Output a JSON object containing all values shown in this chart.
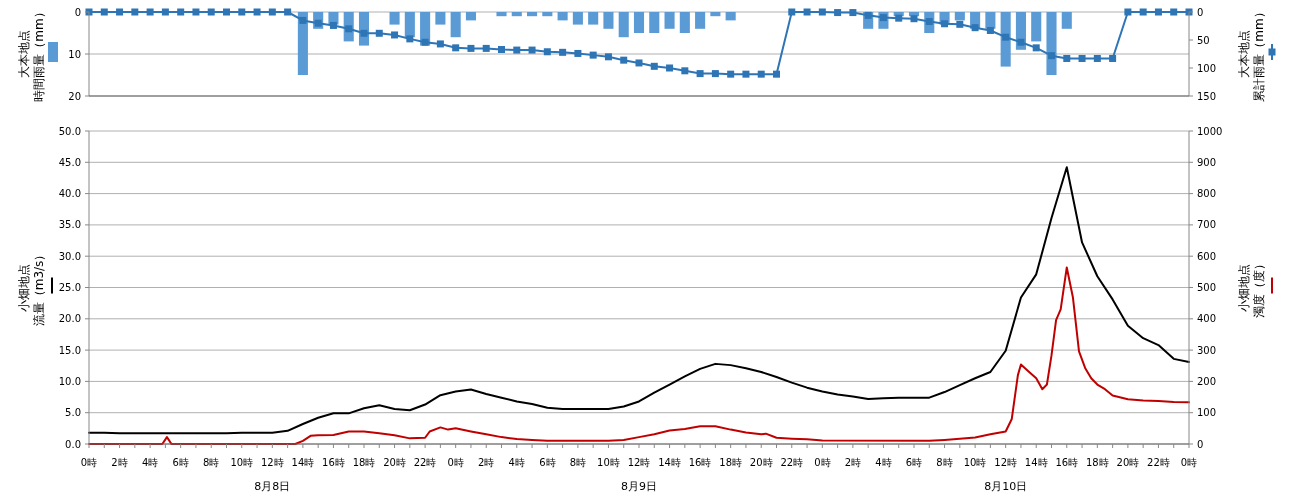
{
  "chart_data": [
    {
      "type": "bar",
      "ylabel": "大本地点時間雨量（mm）",
      "y2label": "大本地点累計雨量（mm）",
      "x": [
        "--08-08T00:00",
        "--08-08T01:00",
        "--08-08T02:00",
        "--08-08T03:00",
        "--08-08T04:00",
        "--08-08T05:00",
        "--08-08T06:00",
        "--08-08T07:00",
        "--08-08T08:00",
        "--08-08T09:00",
        "--08-08T10:00",
        "--08-08T11:00",
        "--08-08T12:00",
        "--08-08T13:00",
        "--08-08T14:00",
        "--08-08T15:00",
        "--08-08T16:00",
        "--08-08T17:00",
        "--08-08T18:00",
        "--08-08T19:00",
        "--08-08T20:00",
        "--08-08T21:00",
        "--08-08T22:00",
        "--08-08T23:00",
        "--08-09T00:00",
        "--08-09T01:00",
        "--08-09T02:00",
        "--08-09T03:00",
        "--08-09T04:00",
        "--08-09T05:00",
        "--08-09T06:00",
        "--08-09T07:00",
        "--08-09T08:00",
        "--08-09T09:00",
        "--08-09T10:00",
        "--08-09T11:00",
        "--08-09T12:00",
        "--08-09T13:00",
        "--08-09T14:00",
        "--08-09T15:00",
        "--08-09T16:00",
        "--08-09T17:00",
        "--08-09T18:00",
        "--08-09T19:00",
        "--08-09T20:00",
        "--08-09T21:00",
        "--08-09T22:00",
        "--08-09T23:00",
        "--08-10T00:00",
        "--08-10T01:00",
        "--08-10T02:00",
        "--08-10T03:00",
        "--08-10T04:00",
        "--08-10T05:00",
        "--08-10T06:00",
        "--08-10T07:00",
        "--08-10T08:00",
        "--08-10T09:00",
        "--08-10T10:00",
        "--08-10T11:00",
        "--08-10T12:00",
        "--08-10T13:00",
        "--08-10T14:00",
        "--08-10T15:00",
        "--08-10T16:00",
        "--08-10T17:00",
        "--08-10T18:00",
        "--08-10T19:00",
        "--08-10T20:00",
        "--08-10T21:00",
        "--08-10T22:00",
        "--08-10T23:00",
        "--08-11T00:00"
      ],
      "xlim": [
        "--08-08T00:00",
        "--08-11T00:00"
      ],
      "ylim": [
        20,
        0
      ],
      "yticks": [
        0,
        10,
        20
      ],
      "y2lim": [
        150,
        0
      ],
      "y2ticks": [
        0,
        50,
        100,
        150
      ],
      "grid": "y",
      "tick_labels": "y",
      "series": [
        {
          "color": "#5b9bd5",
          "values": [
            0,
            0,
            0,
            0,
            0,
            0,
            0,
            0,
            0,
            0,
            0,
            0,
            0,
            0,
            15,
            4,
            3,
            7,
            8,
            0,
            3,
            6,
            8,
            3,
            6,
            2,
            0,
            1,
            1,
            1,
            1,
            2,
            3,
            3,
            4,
            6,
            5,
            5,
            4,
            5,
            4,
            1,
            2,
            0,
            0,
            0,
            0,
            0,
            0,
            0,
            0,
            4,
            4,
            1,
            1,
            5,
            3,
            2,
            4,
            4,
            13,
            9,
            7,
            15,
            4,
            0,
            0,
            0,
            0,
            0,
            0,
            0,
            0
          ]
        },
        {
          "type": "line",
          "axis": "y2",
          "color": "#2e75b6",
          "marker": "square",
          "values": [
            0,
            0,
            0,
            0,
            0,
            0,
            0,
            0,
            0,
            0,
            0,
            0,
            0,
            0,
            15,
            20,
            24,
            30,
            38,
            38,
            41,
            48,
            54,
            57,
            64,
            65,
            65,
            67,
            68,
            68,
            71,
            72,
            74,
            77,
            80,
            86,
            91,
            97,
            100,
            105,
            110,
            110,
            111,
            111,
            111,
            111,
            0,
            0,
            0,
            1,
            1,
            6,
            10,
            11,
            12,
            17,
            21,
            22,
            28,
            33,
            45,
            54,
            64,
            78,
            83,
            83,
            83,
            83,
            0,
            0,
            0,
            0,
            0
          ]
        }
      ]
    },
    {
      "type": "line",
      "ylabel": "小畑地点流量（m3/s）",
      "y2label": "小畑地点濁度（度）",
      "x": [
        "--08-08T00:00",
        "--08-08T01:00",
        "--08-08T02:00",
        "--08-08T03:00",
        "--08-08T04:00",
        "--08-08T05:00",
        "--08-08T06:00",
        "--08-08T07:00",
        "--08-08T08:00",
        "--08-08T09:00",
        "--08-08T10:00",
        "--08-08T11:00",
        "--08-08T12:00",
        "--08-08T13:00",
        "--08-08T14:00",
        "--08-08T15:00",
        "--08-08T16:00",
        "--08-08T17:00",
        "--08-08T18:00",
        "--08-08T19:00",
        "--08-08T20:00",
        "--08-08T21:00",
        "--08-08T22:00",
        "--08-08T23:00",
        "--08-09T00:00",
        "--08-09T01:00",
        "--08-09T02:00",
        "--08-09T03:00",
        "--08-09T04:00",
        "--08-09T05:00",
        "--08-09T06:00",
        "--08-09T07:00",
        "--08-09T08:00",
        "--08-09T09:00",
        "--08-09T10:00",
        "--08-09T11:00",
        "--08-09T12:00",
        "--08-09T13:00",
        "--08-09T14:00",
        "--08-09T15:00",
        "--08-09T16:00",
        "--08-09T17:00",
        "--08-09T18:00",
        "--08-09T19:00",
        "--08-09T20:00",
        "--08-09T21:00",
        "--08-09T22:00",
        "--08-09T23:00",
        "--08-10T00:00",
        "--08-10T01:00",
        "--08-10T02:00",
        "--08-10T03:00",
        "--08-10T04:00",
        "--08-10T05:00",
        "--08-10T06:00",
        "--08-10T07:00",
        "--08-10T08:00",
        "--08-10T09:00",
        "--08-10T10:00",
        "--08-10T11:00",
        "--08-10T12:00",
        "--08-10T13:00",
        "--08-10T14:00",
        "--08-10T15:00",
        "--08-10T16:00",
        "--08-10T17:00",
        "--08-10T18:00",
        "--08-10T19:00",
        "--08-10T20:00",
        "--08-10T21:00",
        "--08-10T22:00",
        "--08-10T23:00",
        "--08-11T00:00"
      ],
      "xlim": [
        "--08-08T00:00",
        "--08-11T00:00"
      ],
      "xticks": [
        {
          "value": "--08-08T00:00",
          "label": "0時"
        },
        {
          "value": "--08-08T01:00",
          "label": null
        },
        {
          "value": "--08-08T02:00",
          "label": "2時"
        },
        {
          "value": "--08-08T03:00",
          "label": null
        },
        {
          "value": "--08-08T04:00",
          "label": "4時"
        },
        {
          "value": "--08-08T05:00",
          "label": null
        },
        {
          "value": "--08-08T06:00",
          "label": "6時"
        },
        {
          "value": "--08-08T07:00",
          "label": null
        },
        {
          "value": "--08-08T08:00",
          "label": "8時"
        },
        {
          "value": "--08-08T09:00",
          "label": null
        },
        {
          "value": "--08-08T10:00",
          "label": "10時"
        },
        {
          "value": "--08-08T11:00",
          "label": null
        },
        {
          "value": "--08-08T12:00",
          "label": "12時"
        },
        {
          "value": "--08-08T13:00",
          "label": null
        },
        {
          "value": "--08-08T14:00",
          "label": "14時"
        },
        {
          "value": "--08-08T15:00",
          "label": null
        },
        {
          "value": "--08-08T16:00",
          "label": "16時"
        },
        {
          "value": "--08-08T17:00",
          "label": null
        },
        {
          "value": "--08-08T18:00",
          "label": "18時"
        },
        {
          "value": "--08-08T19:00",
          "label": null
        },
        {
          "value": "--08-08T20:00",
          "label": "20時"
        },
        {
          "value": "--08-08T21:00",
          "label": null
        },
        {
          "value": "--08-08T22:00",
          "label": "22時"
        },
        {
          "value": "--08-08T23:00",
          "label": null
        },
        {
          "value": "--08-09T00:00",
          "label": "0時"
        },
        {
          "value": "--08-09T01:00",
          "label": null
        },
        {
          "value": "--08-09T02:00",
          "label": "2時"
        },
        {
          "value": "--08-09T03:00",
          "label": null
        },
        {
          "value": "--08-09T04:00",
          "label": "4時"
        },
        {
          "value": "--08-09T05:00",
          "label": null
        },
        {
          "value": "--08-09T06:00",
          "label": "6時"
        },
        {
          "value": "--08-09T07:00",
          "label": null
        },
        {
          "value": "--08-09T08:00",
          "label": "8時"
        },
        {
          "value": "--08-09T09:00",
          "label": null
        },
        {
          "value": "--08-09T10:00",
          "label": "10時"
        },
        {
          "value": "--08-09T11:00",
          "label": null
        },
        {
          "value": "--08-09T12:00",
          "label": "12時"
        },
        {
          "value": "--08-09T13:00",
          "label": null
        },
        {
          "value": "--08-09T14:00",
          "label": "14時"
        },
        {
          "value": "--08-09T15:00",
          "label": null
        },
        {
          "value": "--08-09T16:00",
          "label": "16時"
        },
        {
          "value": "--08-09T17:00",
          "label": null
        },
        {
          "value": "--08-09T18:00",
          "label": "18時"
        },
        {
          "value": "--08-09T19:00",
          "label": null
        },
        {
          "value": "--08-09T20:00",
          "label": "20時"
        },
        {
          "value": "--08-09T21:00",
          "label": null
        },
        {
          "value": "--08-09T22:00",
          "label": "22時"
        },
        {
          "value": "--08-09T23:00",
          "label": null
        },
        {
          "value": "--08-10T00:00",
          "label": "0時"
        },
        {
          "value": "--08-10T01:00",
          "label": null
        },
        {
          "value": "--08-10T02:00",
          "label": "2時"
        },
        {
          "value": "--08-10T03:00",
          "label": null
        },
        {
          "value": "--08-10T04:00",
          "label": "4時"
        },
        {
          "value": "--08-10T05:00",
          "label": null
        },
        {
          "value": "--08-10T06:00",
          "label": "6時"
        },
        {
          "value": "--08-10T07:00",
          "label": null
        },
        {
          "value": "--08-10T08:00",
          "label": "8時"
        },
        {
          "value": "--08-10T09:00",
          "label": null
        },
        {
          "value": "--08-10T10:00",
          "label": "10時"
        },
        {
          "value": "--08-10T11:00",
          "label": null
        },
        {
          "value": "--08-10T12:00",
          "label": "12時"
        },
        {
          "value": "--08-10T13:00",
          "label": null
        },
        {
          "value": "--08-10T14:00",
          "label": "14時"
        },
        {
          "value": "--08-10T15:00",
          "label": null
        },
        {
          "value": "--08-10T16:00",
          "label": "16時"
        },
        {
          "value": "--08-10T17:00",
          "label": null
        },
        {
          "value": "--08-10T18:00",
          "label": "18時"
        },
        {
          "value": "--08-10T19:00",
          "label": null
        },
        {
          "value": "--08-10T20:00",
          "label": "20時"
        },
        {
          "value": "--08-10T21:00",
          "label": null
        },
        {
          "value": "--08-10T22:00",
          "label": "22時"
        },
        {
          "value": "--08-10T23:00",
          "label": null
        },
        {
          "value": "--08-11T00:00",
          "label": "0時"
        }
      ],
      "ylim": [
        0,
        50
      ],
      "yticks": [
        {
          "value": 0,
          "label": "0.0"
        },
        {
          "value": 5,
          "label": "5.0"
        },
        {
          "value": 10,
          "label": "10.0"
        },
        {
          "value": 15,
          "label": "15.0"
        },
        {
          "value": 20,
          "label": "20.0"
        },
        {
          "value": 25,
          "label": "25.0"
        },
        {
          "value": 30,
          "label": "30.0"
        },
        {
          "value": 35,
          "label": "35.0"
        },
        {
          "value": 40,
          "label": "40.0"
        },
        {
          "value": 45,
          "label": "45.0"
        },
        {
          "value": 50,
          "label": "50.0"
        }
      ],
      "y2lim": [
        0,
        1000
      ],
      "y2ticks": [
        0,
        100,
        200,
        300,
        400,
        500,
        600,
        700,
        800,
        900,
        1000
      ],
      "grid": "y",
      "annotations": [
        "8月8日",
        "8月9日",
        "8月10日"
      ],
      "series": [
        {
          "color": "#000000",
          "values": [
            1.8,
            1.8,
            1.7,
            1.7,
            1.7,
            1.7,
            1.7,
            1.7,
            1.7,
            1.7,
            1.8,
            1.8,
            1.8,
            2.1,
            3.2,
            4.2,
            4.9,
            4.9,
            5.7,
            6.2,
            5.6,
            5.4,
            6.3,
            7.8,
            8.4,
            8.7,
            8.0,
            7.4,
            6.8,
            6.4,
            5.8,
            5.6,
            5.6,
            5.6,
            5.6,
            6.0,
            6.8,
            8.2,
            9.5,
            10.8,
            12.0,
            12.8,
            12.6,
            12.1,
            11.5,
            10.7,
            9.8,
            9.0,
            8.4,
            7.9,
            7.6,
            7.2,
            7.3,
            7.4,
            7.4,
            7.4,
            8.3,
            9.4,
            10.5,
            11.5,
            14.9,
            23.4,
            27.1,
            36.1,
            44.2,
            32.2,
            26.8,
            23.1,
            18.9,
            16.9,
            15.8,
            13.6,
            13.1
          ]
        },
        {
          "color": "#c00000",
          "axis": "y2",
          "x": [
            "--08-08T00:00",
            "--08-08T04:48",
            "--08-08T05:06",
            "--08-08T05:24",
            "--08-08T13:30",
            "--08-08T14:00",
            "--08-08T14:30",
            "--08-08T15:00",
            "--08-08T16:00",
            "--08-08T17:00",
            "--08-08T18:00",
            "--08-08T19:00",
            "--08-08T20:00",
            "--08-08T21:00",
            "--08-08T22:00",
            "--08-08T22:18",
            "--08-08T23:00",
            "--08-08T23:30",
            "--08-09T00:00",
            "--08-09T01:00",
            "--08-09T02:00",
            "--08-09T03:00",
            "--08-09T04:00",
            "--08-09T05:00",
            "--08-09T06:00",
            "--08-09T10:00",
            "--08-09T11:00",
            "--08-09T12:00",
            "--08-09T13:00",
            "--08-09T14:00",
            "--08-09T15:00",
            "--08-09T16:00",
            "--08-09T17:00",
            "--08-09T18:00",
            "--08-09T19:00",
            "--08-09T20:00",
            "--08-09T20:18",
            "--08-09T21:00",
            "--08-09T22:00",
            "--08-09T23:00",
            "--08-10T00:00",
            "--08-10T07:00",
            "--08-10T08:00",
            "--08-10T09:00",
            "--08-10T10:00",
            "--08-10T11:00",
            "--08-10T12:00",
            "--08-10T12:24",
            "--08-10T12:48",
            "--08-10T13:00",
            "--08-10T13:30",
            "--08-10T14:00",
            "--08-10T14:24",
            "--08-10T14:42",
            "--08-10T15:00",
            "--08-10T15:18",
            "--08-10T15:36",
            "--08-10T16:00",
            "--08-10T16:24",
            "--08-10T16:48",
            "--08-10T17:12",
            "--08-10T17:36",
            "--08-10T18:00",
            "--08-10T18:30",
            "--08-10T19:00",
            "--08-10T20:00",
            "--08-10T21:00",
            "--08-10T22:00",
            "--08-10T23:00",
            "--08-11T00:00"
          ],
          "values": [
            0,
            0,
            22,
            0,
            0,
            10,
            26,
            28,
            29,
            40,
            40,
            34,
            28,
            18,
            20,
            40,
            53,
            46,
            50,
            40,
            31,
            22,
            16,
            13,
            10,
            10,
            13,
            22,
            31,
            43,
            48,
            57,
            57,
            46,
            37,
            31,
            33,
            20,
            17,
            15,
            11,
            10,
            13,
            17,
            21,
            31,
            40,
            80,
            220,
            254,
            232,
            210,
            175,
            190,
            283,
            396,
            430,
            564,
            469,
            296,
            243,
            210,
            190,
            175,
            155,
            143,
            139,
            137,
            134,
            133
          ]
        }
      ]
    }
  ]
}
